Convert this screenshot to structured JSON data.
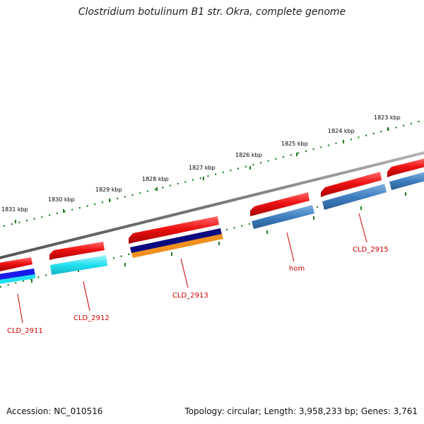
{
  "title": "Clostridium botulinum B1 str. Okra, complete genome",
  "footer": {
    "accession": "Accession: NC_010516",
    "summary": "Topology: circular; Length: 3,958,233 bp; Genes: 3,761"
  },
  "scale_labels": [
    "1831 kbp",
    "1830 kbp",
    "1829 kbp",
    "1828 kbp",
    "1827 kbp",
    "1826 kbp",
    "1825 kbp",
    "1824 kbp",
    "1823 kbp"
  ],
  "gene_labels": [
    "CLD_2911",
    "CLD_2912",
    "CLD_2913",
    "hom",
    "CLD_2915"
  ],
  "colors": {
    "gene_red": "#ee1111",
    "label_red": "#cc0000",
    "backbone": "#7a7a7a",
    "tick_green": "#1f7a1f",
    "feature_blue": "#3070b0",
    "feature_cyan": "#22e0f0",
    "feature_navy": "#0a0a80",
    "feature_orange": "#f09020",
    "feature_brightblue": "#1a1aee"
  }
}
